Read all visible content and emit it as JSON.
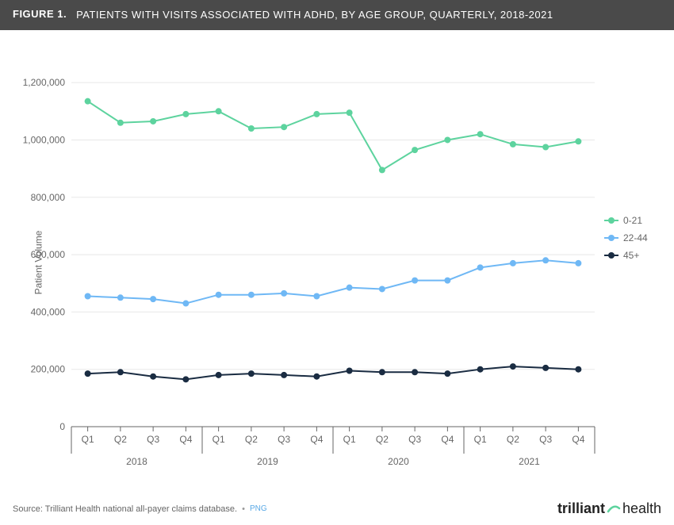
{
  "header": {
    "figure_label": "FIGURE 1.",
    "title": "PATIENTS WITH VISITS ASSOCIATED WITH ADHD, BY AGE GROUP, QUARTERLY, 2018-2021"
  },
  "chart": {
    "type": "line",
    "ylabel": "Patient Volume",
    "ylim": [
      0,
      1300000
    ],
    "yticks": [
      0,
      200000,
      400000,
      600000,
      800000,
      1000000,
      1200000
    ],
    "ytick_labels": [
      "0",
      "200,000",
      "400,000",
      "600,000",
      "800,000",
      "1,000,000",
      "1,200,000"
    ],
    "quarters": [
      "Q1",
      "Q2",
      "Q3",
      "Q4",
      "Q1",
      "Q2",
      "Q3",
      "Q4",
      "Q1",
      "Q2",
      "Q3",
      "Q4",
      "Q1",
      "Q2",
      "Q3",
      "Q4"
    ],
    "years": [
      "2018",
      "2019",
      "2020",
      "2021"
    ],
    "grid_color": "#e8e8e8",
    "axis_color": "#666666",
    "background_color": "#ffffff",
    "tick_font_size": 12,
    "tick_color": "#666666",
    "line_width": 2,
    "marker_radius": 4,
    "series": [
      {
        "name": "0-21",
        "color": "#5dd39e",
        "values": [
          1135000,
          1060000,
          1065000,
          1090000,
          1100000,
          1040000,
          1045000,
          1090000,
          1095000,
          895000,
          965000,
          1000000,
          1020000,
          985000,
          975000,
          995000
        ]
      },
      {
        "name": "22-44",
        "color": "#6fb8f5",
        "values": [
          455000,
          450000,
          445000,
          430000,
          460000,
          460000,
          465000,
          455000,
          485000,
          480000,
          510000,
          510000,
          555000,
          570000,
          580000,
          570000
        ]
      },
      {
        "name": "45+",
        "color": "#1a2c42",
        "values": [
          185000,
          190000,
          175000,
          165000,
          180000,
          185000,
          180000,
          175000,
          195000,
          190000,
          190000,
          185000,
          200000,
          210000,
          205000,
          200000
        ]
      }
    ]
  },
  "footer": {
    "source": "Source: Trilliant Health national all-payer claims database.",
    "png_label": "PNG",
    "brand_part1": "trilliant",
    "brand_part2": "health"
  }
}
